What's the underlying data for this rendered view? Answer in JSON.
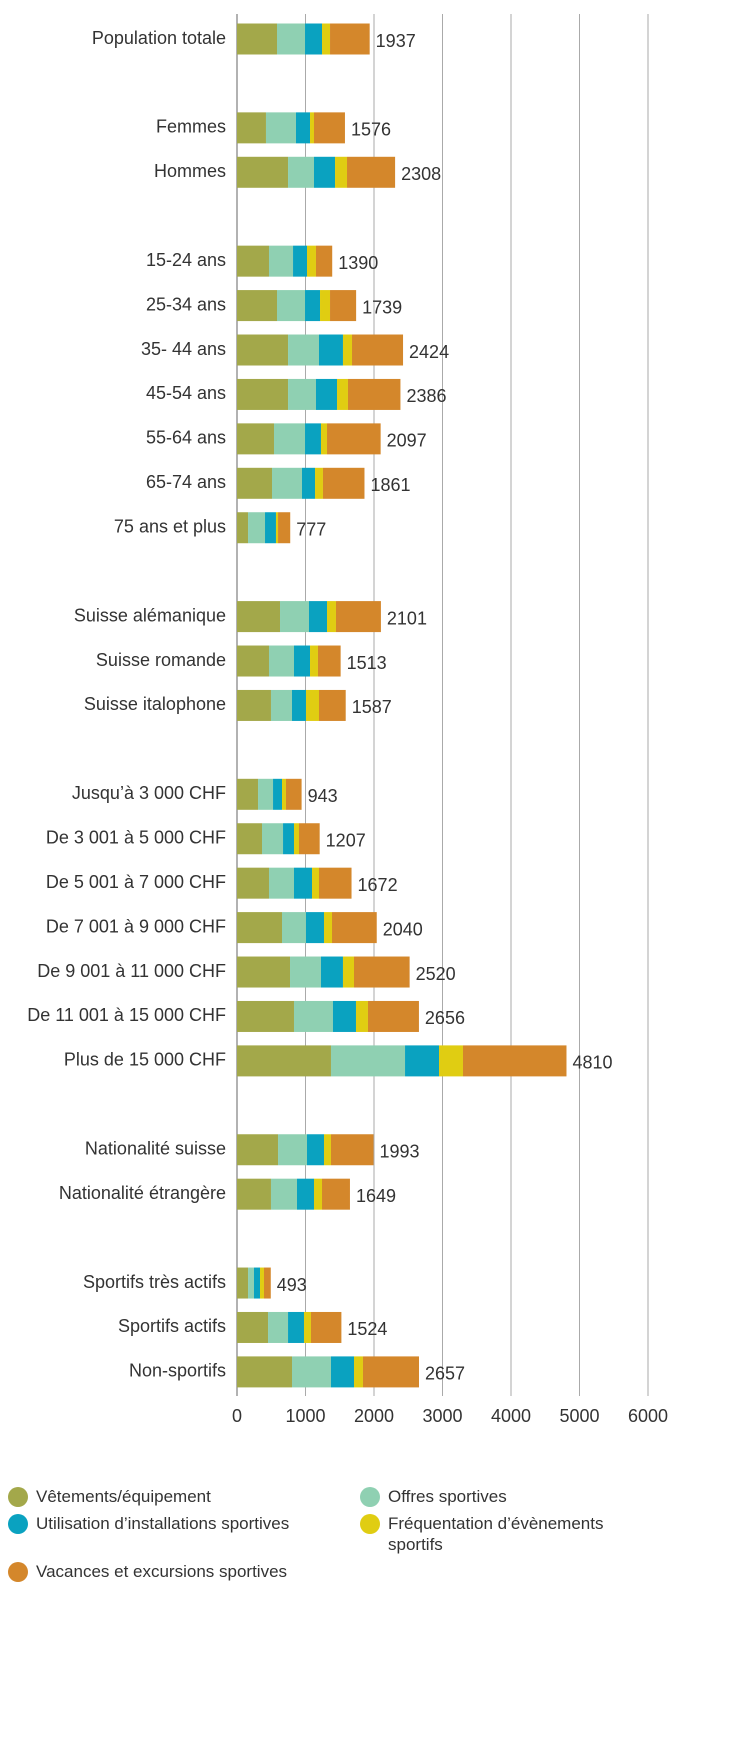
{
  "chart_data": {
    "type": "bar",
    "orientation": "horizontal",
    "stacked": true,
    "categories": [
      "Population totale",
      null,
      "Femmes",
      "Hommes",
      null,
      "15-24 ans",
      "25-34 ans",
      "35- 44 ans",
      "45-54 ans",
      "55-64 ans",
      "65-74 ans",
      "75 ans et plus",
      null,
      "Suisse alémanique",
      "Suisse romande",
      "Suisse italophone",
      null,
      "Jusqu’à 3 000 CHF",
      "De 3 001 à 5 000 CHF",
      "De 5 001 à 7 000 CHF",
      "De 7 001 à 9 000 CHF",
      "De 9 001 à 11 000 CHF",
      "De 11 001 à 15 000 CHF",
      "Plus de 15 000 CHF",
      null,
      "Nationalité suisse",
      "Nationalité étrangère",
      null,
      "Sportifs très actifs",
      "Sportifs actifs",
      "Non-sportifs"
    ],
    "series": [
      {
        "name": "Vêtements/équipement",
        "color": "#a3a84a",
        "values": [
          584,
          null,
          423,
          745,
          null,
          467,
          584,
          745,
          745,
          540,
          511,
          161,
          null,
          628,
          467,
          496,
          null,
          307,
          365,
          467,
          657,
          774,
          832,
          1372,
          null,
          599,
          496,
          null,
          161,
          453,
          803
        ]
      },
      {
        "name": "Offres sportives",
        "color": "#8fd0b2",
        "values": [
          409,
          null,
          438,
          379,
          null,
          351,
          409,
          452,
          408,
          453,
          438,
          248,
          null,
          423,
          365,
          307,
          null,
          219,
          307,
          365,
          350,
          452,
          569,
          1081,
          null,
          423,
          380,
          null,
          87,
          292,
          569
        ]
      },
      {
        "name": "Utilisation d’installations sportives",
        "color": "#0aa2c0",
        "values": [
          248,
          null,
          205,
          307,
          null,
          204,
          219,
          350,
          307,
          233,
          190,
          160,
          null,
          263,
          234,
          204,
          null,
          131,
          160,
          263,
          263,
          321,
          336,
          496,
          null,
          248,
          248,
          null,
          88,
          233,
          336
        ]
      },
      {
        "name": "Fréquentation d’évènements sportifs",
        "color": "#e0cd12",
        "values": [
          117,
          null,
          58,
          175,
          null,
          131,
          146,
          132,
          160,
          88,
          116,
          30,
          null,
          131,
          116,
          190,
          null,
          58,
          73,
          102,
          117,
          161,
          175,
          350,
          null,
          102,
          117,
          null,
          58,
          102,
          131
        ]
      },
      {
        "name": "Vacances et excursions sportives",
        "color": "#d4872b",
        "values": [
          579,
          null,
          452,
          702,
          null,
          237,
          381,
          745,
          766,
          783,
          606,
          178,
          null,
          656,
          331,
          390,
          null,
          228,
          302,
          475,
          653,
          812,
          744,
          1511,
          null,
          621,
          408,
          null,
          99,
          444,
          818
        ]
      }
    ],
    "totals": [
      1937,
      null,
      1576,
      2308,
      null,
      1390,
      1739,
      2424,
      2386,
      2097,
      1861,
      777,
      null,
      2101,
      1513,
      1587,
      null,
      943,
      1207,
      1672,
      2040,
      2520,
      2656,
      4810,
      null,
      1993,
      1649,
      null,
      493,
      1524,
      2657
    ],
    "xlim": [
      0,
      6000
    ],
    "xticks": [
      0,
      1000,
      2000,
      3000,
      4000,
      5000,
      6000
    ],
    "grid": true
  }
}
